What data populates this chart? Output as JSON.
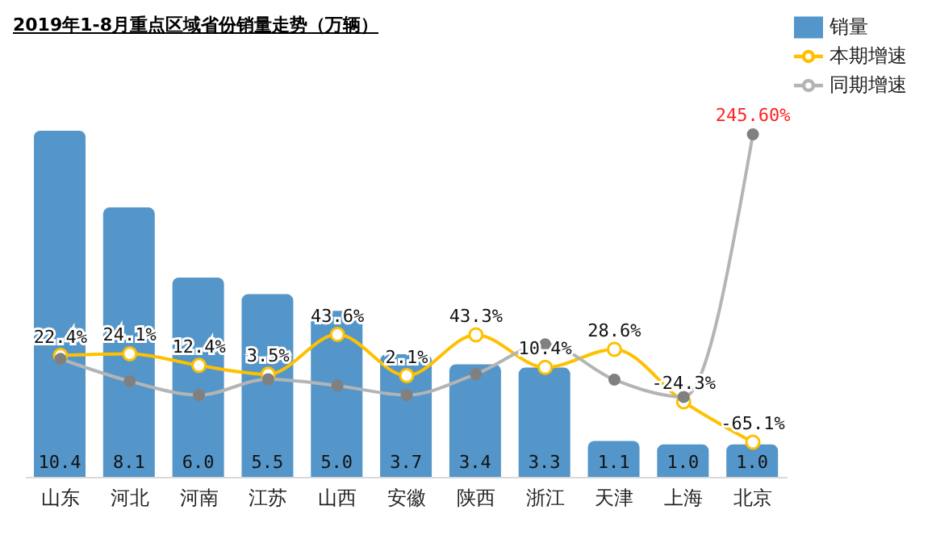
{
  "chart_data": {
    "type": "bar",
    "title": "2019年1-8月重点区域省份销量走势（万辆）",
    "categories": [
      "山东",
      "河北",
      "河南",
      "江苏",
      "山西",
      "安徽",
      "陕西",
      "浙江",
      "天津",
      "上海",
      "北京"
    ],
    "series": [
      {
        "name": "销量",
        "color": "#5496c9",
        "values": [
          10.4,
          8.1,
          6.0,
          5.5,
          5.0,
          3.7,
          3.4,
          3.3,
          1.1,
          1.0,
          1.0
        ],
        "value_labels": [
          "10.4",
          "8.1",
          "6.0",
          "5.5",
          "5.0",
          "3.7",
          "3.4",
          "3.3",
          "1.1",
          "1.0",
          "1.0"
        ]
      },
      {
        "name": "本期增速",
        "type": "line",
        "axis": "y2",
        "color": "#ffc000",
        "marker": "circle",
        "values": [
          22.4,
          24.1,
          12.4,
          3.5,
          43.6,
          2.1,
          43.3,
          10.4,
          28.6,
          -24.3,
          -65.1
        ],
        "value_labels": [
          "22.4%",
          "24.1%",
          "12.4%",
          "3.5%",
          "43.6%",
          "2.1%",
          "43.3%",
          "10.4%",
          "28.6%",
          "-24.3%",
          "-65.1%"
        ]
      },
      {
        "name": "同期增速",
        "type": "line",
        "axis": "y2",
        "color": "#b4b4b4",
        "marker": "circle",
        "values": [
          19,
          -3.5,
          -17.5,
          -1.5,
          -8,
          -17.5,
          3.7,
          33.7,
          -2,
          -19.4,
          245.6
        ],
        "value_labels": [
          null,
          null,
          null,
          null,
          null,
          null,
          null,
          null,
          null,
          null,
          "245.60%"
        ]
      }
    ],
    "tick_labels": "x",
    "legend": "top right"
  }
}
